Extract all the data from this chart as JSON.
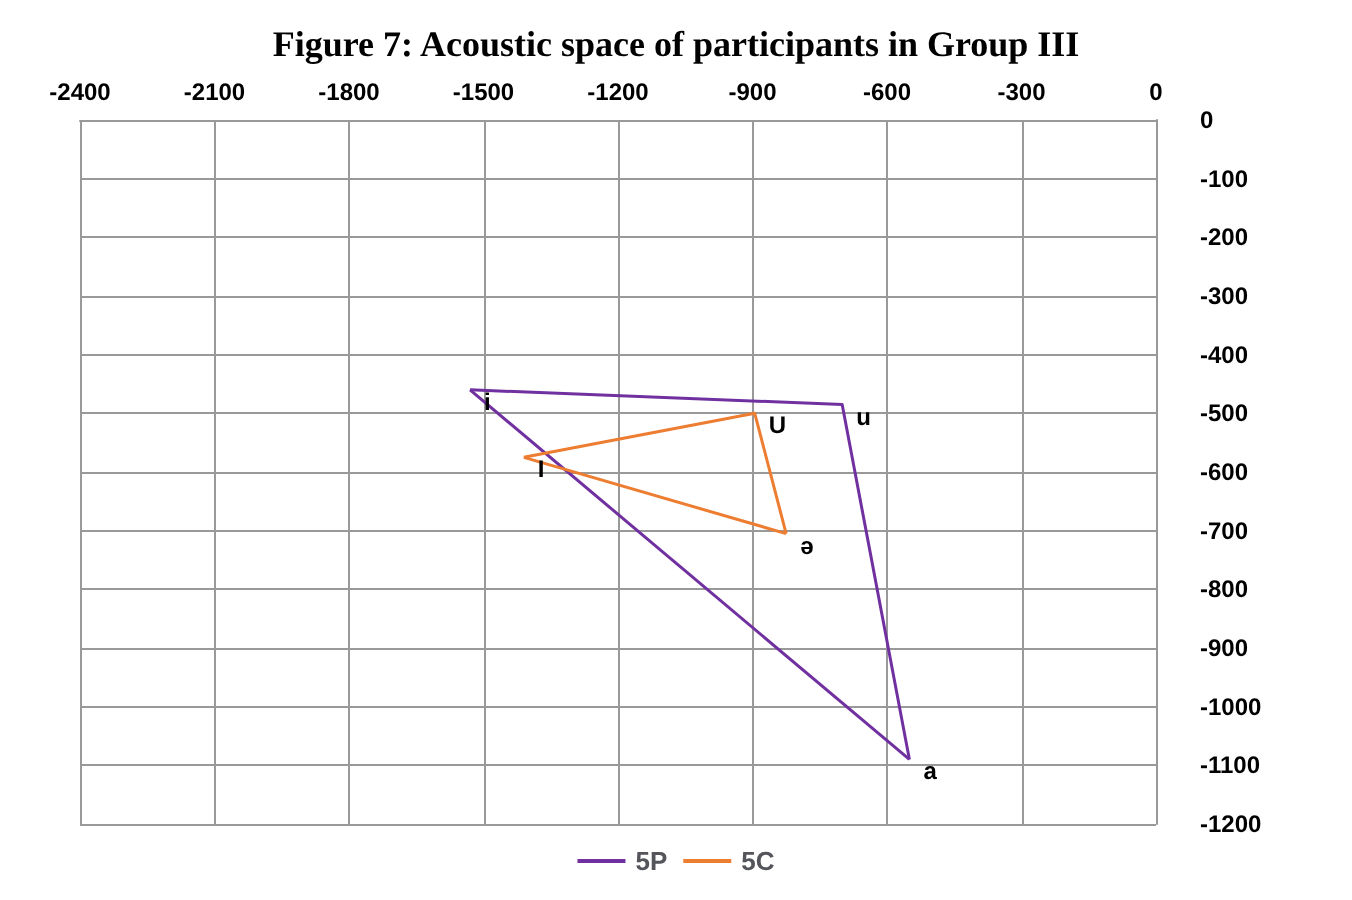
{
  "chart_data": {
    "type": "line",
    "title": "Figure 7: Acoustic space of participants in Group III",
    "series": [
      {
        "name": "5P",
        "color": "#7030a0",
        "x": [
          -1530,
          -700,
          -550
        ],
        "values": [
          -460,
          -485,
          -1090
        ]
      },
      {
        "color": "#7030a0",
        "x": [
          -1530,
          -550
        ],
        "values": [
          -460,
          -1090
        ]
      },
      {
        "name": "5C",
        "color": "#ed7d31",
        "x": [
          -1410,
          -895,
          -825
        ],
        "values": [
          -575,
          -500,
          -705
        ]
      },
      {
        "color": "#ed7d31",
        "x": [
          -1410,
          -825
        ],
        "values": [
          -575,
          -705
        ]
      }
    ],
    "annotations": [
      {
        "text": "i",
        "x": -1530,
        "y": -460
      },
      {
        "text": "u",
        "x": -700,
        "y": -485
      },
      {
        "text": "a",
        "x": -550,
        "y": -1090
      },
      {
        "text": "U",
        "x": -895,
        "y": -500
      },
      {
        "text": "I",
        "x": -1410,
        "y": -575
      },
      {
        "text": "ə",
        "x": -825,
        "y": -705
      }
    ],
    "xlim": [
      -2400,
      0
    ],
    "xticks": [
      -2400,
      -2100,
      -1800,
      -1500,
      -1200,
      -900,
      -600,
      -300,
      0
    ],
    "ylim": [
      -1200,
      0
    ],
    "yticks": [
      -1200,
      -1100,
      -1000,
      -900,
      -800,
      -700,
      -600,
      -500,
      -400,
      -300,
      -200,
      -100,
      0
    ],
    "grid": true,
    "legend": "bottom",
    "marker": "none",
    "line_style": "solid"
  }
}
